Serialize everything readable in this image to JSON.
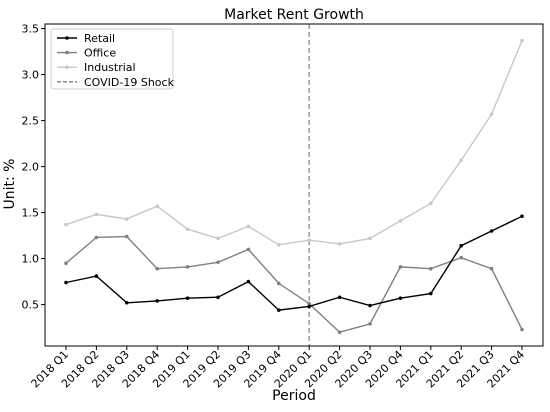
{
  "chart_data": {
    "type": "line",
    "title": "Market Rent Growth",
    "xlabel": "Period",
    "ylabel": "Unit: %",
    "categories": [
      "2018 Q1",
      "2018 Q2",
      "2018 Q3",
      "2018 Q4",
      "2019 Q1",
      "2019 Q2",
      "2019 Q3",
      "2019 Q4",
      "2020 Q1",
      "2020 Q2",
      "2020 Q3",
      "2020 Q4",
      "2021 Q1",
      "2021 Q2",
      "2021 Q3",
      "2021 Q4"
    ],
    "ylim": [
      0.05,
      3.55
    ],
    "yticks": [
      "0.5",
      "1.0",
      "1.5",
      "2.0",
      "2.5",
      "3.0",
      "3.5"
    ],
    "ytick_values": [
      0.5,
      1.0,
      1.5,
      2.0,
      2.5,
      3.0,
      3.5
    ],
    "grid": false,
    "legend_position": "top-left",
    "series": [
      {
        "name": "Retail",
        "color": "#000000",
        "values": [
          0.74,
          0.81,
          0.52,
          0.54,
          0.57,
          0.58,
          0.75,
          0.44,
          0.48,
          0.58,
          0.49,
          0.57,
          0.62,
          1.14,
          1.3,
          1.46
        ]
      },
      {
        "name": "Office",
        "color": "#808080",
        "values": [
          0.95,
          1.23,
          1.24,
          0.89,
          0.91,
          0.96,
          1.1,
          0.73,
          0.51,
          0.2,
          0.29,
          0.91,
          0.89,
          1.01,
          0.89,
          0.23
        ]
      },
      {
        "name": "Industrial",
        "color": "#c8c8c8",
        "values": [
          1.37,
          1.48,
          1.43,
          1.57,
          1.32,
          1.22,
          1.35,
          1.15,
          1.2,
          1.16,
          1.22,
          1.41,
          1.6,
          2.07,
          2.57,
          3.37
        ]
      }
    ],
    "shock": {
      "name": "COVID-19 Shock",
      "category": "2020 Q1",
      "color": "#808080"
    }
  }
}
